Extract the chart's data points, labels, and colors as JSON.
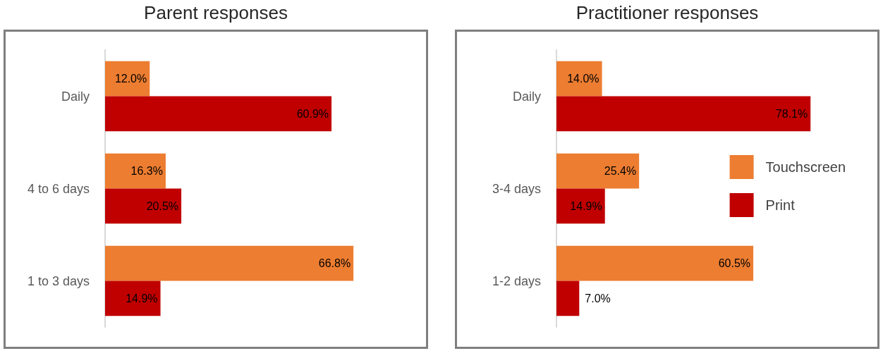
{
  "chart_data": [
    {
      "type": "bar",
      "orientation": "horizontal",
      "title": "Parent responses",
      "categories": [
        "Daily",
        "4 to 6 days",
        "1 to 3 days"
      ],
      "series": [
        {
          "color": "#ed7d31",
          "values": [
            12.0,
            16.3,
            66.8
          ],
          "value_labels": [
            "12.0%",
            "16.3%",
            "66.8%"
          ]
        },
        {
          "color": "#c00000",
          "values": [
            60.9,
            20.5,
            14.9
          ],
          "value_labels": [
            "60.9%",
            "20.5%",
            "14.9%"
          ]
        }
      ],
      "tick_labels": "y"
    },
    {
      "type": "bar",
      "orientation": "horizontal",
      "title": "Practitioner responses",
      "categories": [
        "Daily",
        "3-4 days",
        "1-2 days"
      ],
      "series": [
        {
          "name": "Touchscreen",
          "color": "#ed7d31",
          "values": [
            14.0,
            25.4,
            60.5
          ],
          "value_labels": [
            "14.0%",
            "25.4%",
            "60.5%"
          ]
        },
        {
          "name": "Print",
          "color": "#c00000",
          "values": [
            78.1,
            14.9,
            7.0
          ],
          "value_labels": [
            "78.1%",
            "14.9%",
            "7.0%"
          ]
        }
      ],
      "tick_labels": "y",
      "legend": "right"
    }
  ]
}
